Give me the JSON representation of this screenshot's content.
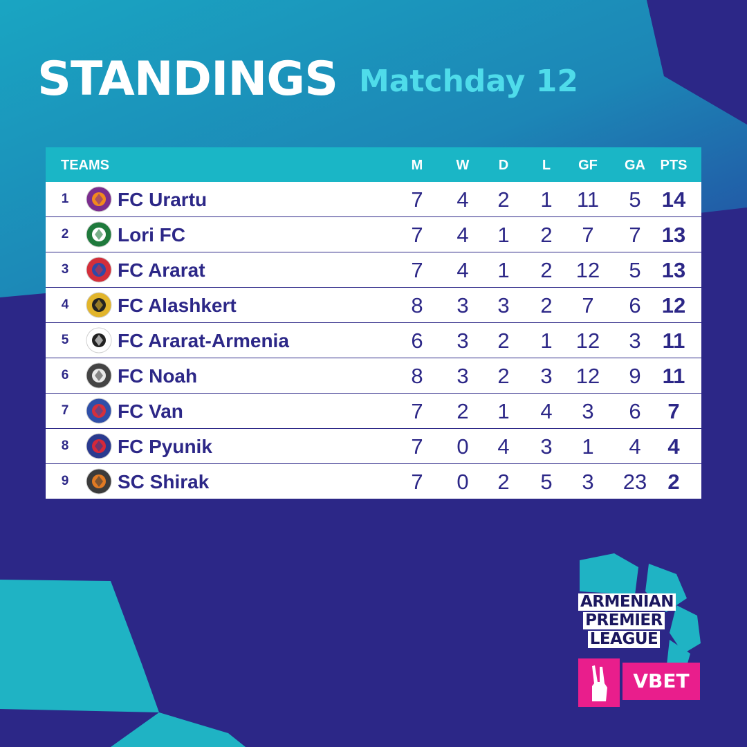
{
  "header": {
    "title": "STANDINGS",
    "subtitle": "Matchday 12"
  },
  "table": {
    "columns": {
      "teams": "TEAMS",
      "m": "M",
      "w": "W",
      "d": "D",
      "l": "L",
      "gf": "GF",
      "ga": "GA",
      "pts": "PTS"
    },
    "rows": [
      {
        "rank": "1",
        "team": "FC Urartu",
        "m": "7",
        "w": "4",
        "d": "2",
        "l": "1",
        "gf": "11",
        "ga": "5",
        "pts": "14"
      },
      {
        "rank": "2",
        "team": "Lori FC",
        "m": "7",
        "w": "4",
        "d": "1",
        "l": "2",
        "gf": "7",
        "ga": "7",
        "pts": "13"
      },
      {
        "rank": "3",
        "team": "FC Ararat",
        "m": "7",
        "w": "4",
        "d": "1",
        "l": "2",
        "gf": "12",
        "ga": "5",
        "pts": "13"
      },
      {
        "rank": "4",
        "team": "FC Alashkert",
        "m": "8",
        "w": "3",
        "d": "3",
        "l": "2",
        "gf": "7",
        "ga": "6",
        "pts": "12"
      },
      {
        "rank": "5",
        "team": "FC Ararat-Armenia",
        "m": "6",
        "w": "3",
        "d": "2",
        "l": "1",
        "gf": "12",
        "ga": "3",
        "pts": "11"
      },
      {
        "rank": "6",
        "team": "FC Noah",
        "m": "8",
        "w": "3",
        "d": "2",
        "l": "3",
        "gf": "12",
        "ga": "9",
        "pts": "11"
      },
      {
        "rank": "7",
        "team": "FC Van",
        "m": "7",
        "w": "2",
        "d": "1",
        "l": "4",
        "gf": "3",
        "ga": "6",
        "pts": "7"
      },
      {
        "rank": "8",
        "team": "FC Pyunik",
        "m": "7",
        "w": "0",
        "d": "4",
        "l": "3",
        "gf": "1",
        "ga": "4",
        "pts": "4"
      },
      {
        "rank": "9",
        "team": "SC Shirak",
        "m": "7",
        "w": "0",
        "d": "2",
        "l": "5",
        "gf": "3",
        "ga": "23",
        "pts": "2"
      }
    ]
  },
  "crests": [
    {
      "icon": "urartu-crest-icon",
      "colors": [
        "#7b2d8e",
        "#f28a1d"
      ]
    },
    {
      "icon": "lori-crest-icon",
      "colors": [
        "#1f7a3c",
        "#ffffff"
      ]
    },
    {
      "icon": "ararat-crest-icon",
      "colors": [
        "#d32f3b",
        "#2d4aa8"
      ]
    },
    {
      "icon": "alashkert-crest-icon",
      "colors": [
        "#e2b52b",
        "#222222"
      ]
    },
    {
      "icon": "ararat-armenia-crest-icon",
      "colors": [
        "#ffffff",
        "#222222"
      ]
    },
    {
      "icon": "noah-crest-icon",
      "colors": [
        "#444444",
        "#e9e9e9"
      ]
    },
    {
      "icon": "van-crest-icon",
      "colors": [
        "#2f4fa8",
        "#d5303c"
      ]
    },
    {
      "icon": "pyunik-crest-icon",
      "colors": [
        "#2a3a8f",
        "#d6283a"
      ]
    },
    {
      "icon": "shirak-crest-icon",
      "colors": [
        "#3b3b3b",
        "#e07a23"
      ]
    }
  ],
  "branding": {
    "league_lines": [
      "ARMENIAN",
      "PREMIER",
      "LEAGUE"
    ],
    "sponsor": "VBET",
    "colors": {
      "teal": "#1ab6c6",
      "navy": "#2c2787",
      "magenta": "#e91e8c",
      "cyan_text": "#4fdcea"
    }
  }
}
